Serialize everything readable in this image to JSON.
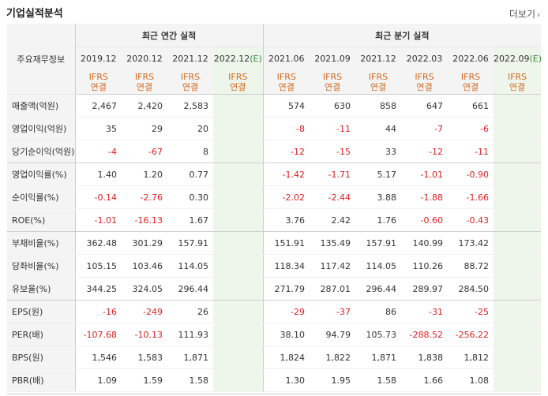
{
  "section_title": "기업실적분석",
  "more_label": "더보기",
  "row_header_label": "주요재무정보",
  "annual_group_label": "최근 연간 실적",
  "quarter_group_label": "최근 분기 실적",
  "estimate_mark": "(E)",
  "periods": [
    {
      "label": "2019.12",
      "est": false
    },
    {
      "label": "2020.12",
      "est": false
    },
    {
      "label": "2021.12",
      "est": false
    },
    {
      "label": "2022.12",
      "est": true
    },
    {
      "label": "2021.06",
      "est": false
    },
    {
      "label": "2021.09",
      "est": false
    },
    {
      "label": "2021.12",
      "est": false
    },
    {
      "label": "2022.03",
      "est": false
    },
    {
      "label": "2022.06",
      "est": false
    },
    {
      "label": "2022.09",
      "est": true
    }
  ],
  "ifrs_line1": "IFRS",
  "ifrs_line2": "연결",
  "rows": [
    {
      "label": "매출액(억원)",
      "values": [
        "2,467",
        "2,420",
        "2,583",
        "",
        "574",
        "630",
        "858",
        "647",
        "661",
        ""
      ]
    },
    {
      "label": "영업이익(억원)",
      "values": [
        "35",
        "29",
        "20",
        "",
        "-8",
        "-11",
        "44",
        "-7",
        "-6",
        ""
      ]
    },
    {
      "label": "당기순이익(억원)",
      "values": [
        "-4",
        "-67",
        "8",
        "",
        "-12",
        "-15",
        "33",
        "-12",
        "-11",
        ""
      ]
    },
    {
      "label": "영업이익률(%)",
      "values": [
        "1.40",
        "1.20",
        "0.77",
        "",
        "-1.42",
        "-1.71",
        "5.17",
        "-1.01",
        "-0.90",
        ""
      ]
    },
    {
      "label": "순이익률(%)",
      "values": [
        "-0.14",
        "-2.76",
        "0.30",
        "",
        "-2.02",
        "-2.44",
        "3.88",
        "-1.88",
        "-1.66",
        ""
      ]
    },
    {
      "label": "ROE(%)",
      "values": [
        "-1.01",
        "-16.13",
        "1.67",
        "",
        "3.76",
        "2.42",
        "1.76",
        "-0.60",
        "-0.43",
        ""
      ]
    },
    {
      "label": "부채비율(%)",
      "values": [
        "362.48",
        "301.29",
        "157.91",
        "",
        "151.91",
        "135.49",
        "157.91",
        "140.99",
        "173.42",
        ""
      ]
    },
    {
      "label": "당좌비율(%)",
      "values": [
        "105.15",
        "103.46",
        "114.05",
        "",
        "118.34",
        "117.42",
        "114.05",
        "110.26",
        "88.72",
        ""
      ]
    },
    {
      "label": "유보율(%)",
      "values": [
        "344.25",
        "324.05",
        "296.44",
        "",
        "271.79",
        "287.01",
        "296.44",
        "289.97",
        "284.50",
        ""
      ]
    },
    {
      "label": "EPS(원)",
      "values": [
        "-16",
        "-249",
        "26",
        "",
        "-29",
        "-37",
        "86",
        "-31",
        "-25",
        ""
      ]
    },
    {
      "label": "PER(배)",
      "values": [
        "-107.68",
        "-10.13",
        "111.93",
        "",
        "38.10",
        "94.79",
        "105.73",
        "-288.52",
        "-256.22",
        ""
      ]
    },
    {
      "label": "BPS(원)",
      "values": [
        "1,546",
        "1,583",
        "1,871",
        "",
        "1,824",
        "1,822",
        "1,871",
        "1,838",
        "1,812",
        ""
      ]
    },
    {
      "label": "PBR(배)",
      "values": [
        "1.09",
        "1.59",
        "1.58",
        "",
        "1.30",
        "1.95",
        "1.58",
        "1.66",
        "1.08",
        ""
      ]
    }
  ]
}
